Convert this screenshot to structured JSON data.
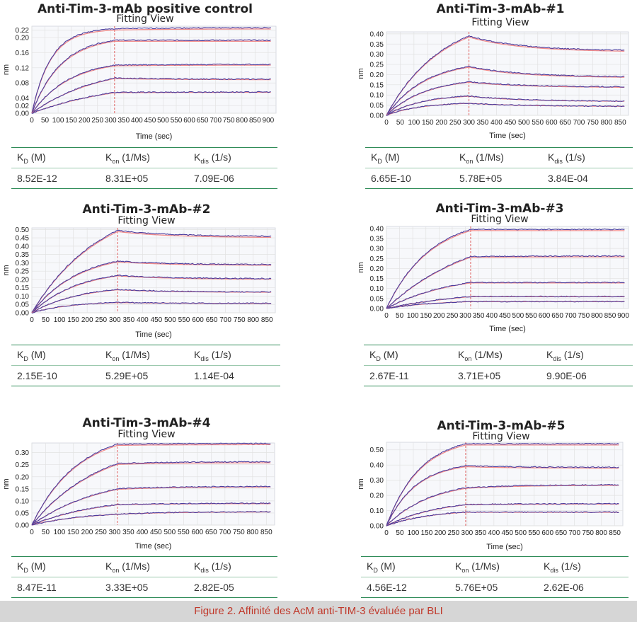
{
  "figure_caption": "Figure 2. Affinité des AcM anti-TIM-3 évaluée par BLI",
  "table_headers": [
    {
      "base": "K",
      "sub": "D",
      "unit": "(M)"
    },
    {
      "base": "K",
      "sub": "on",
      "unit": "(1/Ms)"
    },
    {
      "base": "K",
      "sub": "dis",
      "unit": "(1/s)"
    }
  ],
  "colors": {
    "fit": "#f08080",
    "data": "#4b3d9e",
    "grid": "#e2e2e2",
    "plot_bg": "#f7f8fb",
    "marker": "#e06060"
  },
  "chart_data": [
    {
      "type": "line",
      "title": "Anti-Tim-3-mAb positive control",
      "subtitle": "Fitting View",
      "xlabel": "Time (sec)",
      "ylabel": "nm",
      "xlim": [
        0,
        930
      ],
      "ylim": [
        0,
        0.23
      ],
      "xticks": [
        0,
        50,
        100,
        150,
        200,
        250,
        300,
        350,
        400,
        450,
        500,
        550,
        600,
        650,
        700,
        750,
        800,
        850,
        900
      ],
      "yticks": [
        0.0,
        0.02,
        0.04,
        0.08,
        0.12,
        0.16,
        0.2,
        0.22
      ],
      "ytick_labels": [
        "0.00",
        "0.02",
        "0.04",
        "0.08",
        "0.12",
        "0.16",
        "0.20",
        "0.22"
      ],
      "assoc_end": 315,
      "x_end": 910,
      "grid": true,
      "series": [
        {
          "plateau": 0.223,
          "rate": 0.014,
          "final": 0.226
        },
        {
          "plateau": 0.193,
          "rate": 0.009,
          "final": 0.193
        },
        {
          "plateau": 0.127,
          "rate": 0.007,
          "final": 0.129
        },
        {
          "plateau": 0.093,
          "rate": 0.004,
          "final": 0.09
        },
        {
          "plateau": 0.055,
          "rate": 0.003,
          "final": 0.056
        }
      ],
      "kinetics": {
        "KD": "8.52E-12",
        "Kon": "8.31E+05",
        "Kdis": "7.09E-06"
      }
    },
    {
      "type": "line",
      "title": "Anti-Tim-3-mAb-#1",
      "subtitle": "Fitting View",
      "xlabel": "Time (sec)",
      "ylabel": "nm",
      "xlim": [
        0,
        880
      ],
      "ylim": [
        0,
        0.41
      ],
      "xticks": [
        0,
        50,
        100,
        150,
        200,
        250,
        300,
        350,
        400,
        450,
        500,
        550,
        600,
        650,
        700,
        750,
        800,
        850
      ],
      "yticks": [
        0.0,
        0.05,
        0.1,
        0.15,
        0.2,
        0.25,
        0.3,
        0.35,
        0.4
      ],
      "ytick_labels": [
        "0.00",
        "0.05",
        "0.10",
        "0.15",
        "0.20",
        "0.25",
        "0.30",
        "0.35",
        "0.40"
      ],
      "assoc_end": 300,
      "x_end": 865,
      "grid": true,
      "series": [
        {
          "plateau": 0.39,
          "rate": 0.005,
          "final": 0.32
        },
        {
          "plateau": 0.24,
          "rate": 0.007,
          "final": 0.19
        },
        {
          "plateau": 0.165,
          "rate": 0.007,
          "final": 0.14
        },
        {
          "plateau": 0.095,
          "rate": 0.008,
          "final": 0.07
        },
        {
          "plateau": 0.06,
          "rate": 0.008,
          "final": 0.045
        }
      ],
      "kinetics": {
        "KD": "6.65E-10",
        "Kon": "5.78E+05",
        "Kdis": "3.84E-04"
      }
    },
    {
      "type": "line",
      "title": "Anti-Tim-3-mAb-#2",
      "subtitle": "Fitting View",
      "xlabel": "Time (sec)",
      "ylabel": "nm",
      "xlim": [
        0,
        880
      ],
      "ylim": [
        0,
        0.51
      ],
      "xticks": [
        0,
        50,
        100,
        150,
        200,
        250,
        300,
        350,
        400,
        450,
        500,
        550,
        600,
        650,
        700,
        750,
        800,
        850
      ],
      "yticks": [
        0.0,
        0.05,
        0.1,
        0.15,
        0.2,
        0.25,
        0.3,
        0.35,
        0.4,
        0.45,
        0.5
      ],
      "ytick_labels": [
        "0.00",
        "0.05",
        "0.10",
        "0.15",
        "0.20",
        "0.25",
        "0.30",
        "0.35",
        "0.40",
        "0.45",
        "0.50"
      ],
      "assoc_end": 310,
      "x_end": 865,
      "grid": true,
      "series": [
        {
          "plateau": 0.495,
          "rate": 0.004,
          "final": 0.46
        },
        {
          "plateau": 0.31,
          "rate": 0.006,
          "final": 0.29
        },
        {
          "plateau": 0.225,
          "rate": 0.006,
          "final": 0.205
        },
        {
          "plateau": 0.14,
          "rate": 0.006,
          "final": 0.125
        },
        {
          "plateau": 0.062,
          "rate": 0.007,
          "final": 0.057
        }
      ],
      "kinetics": {
        "KD": "2.15E-10",
        "Kon": "5.29E+05",
        "Kdis": "1.14E-04"
      }
    },
    {
      "type": "line",
      "title": "Anti-Tim-3-mAb-#3",
      "subtitle": "Fitting View",
      "xlabel": "Time (sec)",
      "ylabel": "nm",
      "xlim": [
        0,
        920
      ],
      "ylim": [
        0,
        0.41
      ],
      "xticks": [
        0,
        50,
        100,
        150,
        200,
        250,
        300,
        350,
        400,
        450,
        500,
        550,
        600,
        650,
        700,
        750,
        800,
        850,
        900
      ],
      "yticks": [
        0.0,
        0.05,
        0.1,
        0.15,
        0.2,
        0.25,
        0.3,
        0.35,
        0.4
      ],
      "ytick_labels": [
        "0.00",
        "0.05",
        "0.10",
        "0.15",
        "0.20",
        "0.25",
        "0.30",
        "0.35",
        "0.40"
      ],
      "assoc_end": 320,
      "x_end": 905,
      "grid": true,
      "series": [
        {
          "plateau": 0.395,
          "rate": 0.006,
          "final": 0.395
        },
        {
          "plateau": 0.26,
          "rate": 0.003,
          "final": 0.262
        },
        {
          "plateau": 0.13,
          "rate": 0.004,
          "final": 0.13
        },
        {
          "plateau": 0.06,
          "rate": 0.003,
          "final": 0.06
        },
        {
          "plateau": 0.035,
          "rate": 0.005,
          "final": 0.035
        }
      ],
      "kinetics": {
        "KD": "2.67E-11",
        "Kon": "3.71E+05",
        "Kdis": "9.90E-06"
      }
    },
    {
      "type": "line",
      "title": "Anti-Tim-3-mAb-#4",
      "subtitle": "Fitting View",
      "xlabel": "Time (sec)",
      "ylabel": "nm",
      "xlim": [
        0,
        880
      ],
      "ylim": [
        0,
        0.34
      ],
      "xticks": [
        0,
        50,
        100,
        150,
        200,
        250,
        300,
        350,
        400,
        450,
        500,
        550,
        600,
        650,
        700,
        750,
        800,
        850
      ],
      "yticks": [
        0.0,
        0.05,
        0.1,
        0.15,
        0.2,
        0.25,
        0.3
      ],
      "ytick_labels": [
        "0.00",
        "0.05",
        "0.10",
        "0.15",
        "0.20",
        "0.25",
        "0.30"
      ],
      "assoc_end": 310,
      "x_end": 865,
      "grid": true,
      "series": [
        {
          "plateau": 0.335,
          "rate": 0.006,
          "final": 0.338
        },
        {
          "plateau": 0.255,
          "rate": 0.004,
          "final": 0.262
        },
        {
          "plateau": 0.15,
          "rate": 0.004,
          "final": 0.16
        },
        {
          "plateau": 0.085,
          "rate": 0.004,
          "final": 0.09
        },
        {
          "plateau": 0.045,
          "rate": 0.005,
          "final": 0.055
        }
      ],
      "kinetics": {
        "KD": "8.47E-11",
        "Kon": "3.33E+05",
        "Kdis": "2.82E-05"
      }
    },
    {
      "type": "line",
      "title": "Anti-Tim-3-mAb-#5",
      "subtitle": "Fitting View",
      "xlabel": "Time (sec)",
      "ylabel": "nm",
      "xlim": [
        0,
        880
      ],
      "ylim": [
        0,
        0.55
      ],
      "xticks": [
        0,
        50,
        100,
        150,
        200,
        250,
        300,
        350,
        400,
        450,
        500,
        550,
        600,
        650,
        700,
        750,
        800,
        850
      ],
      "yticks": [
        0.0,
        0.1,
        0.2,
        0.3,
        0.4,
        0.5
      ],
      "ytick_labels": [
        "0.00",
        "0.10",
        "0.20",
        "0.30",
        "0.40",
        "0.50"
      ],
      "assoc_end": 295,
      "x_end": 865,
      "grid": true,
      "series": [
        {
          "plateau": 0.54,
          "rate": 0.008,
          "final": 0.54
        },
        {
          "plateau": 0.395,
          "rate": 0.009,
          "final": 0.385
        },
        {
          "plateau": 0.25,
          "rate": 0.006,
          "final": 0.27
        },
        {
          "plateau": 0.14,
          "rate": 0.005,
          "final": 0.145
        },
        {
          "plateau": 0.09,
          "rate": 0.006,
          "final": 0.09
        }
      ],
      "kinetics": {
        "KD": "4.56E-12",
        "Kon": "5.76E+05",
        "Kdis": "2.62E-06"
      }
    }
  ]
}
